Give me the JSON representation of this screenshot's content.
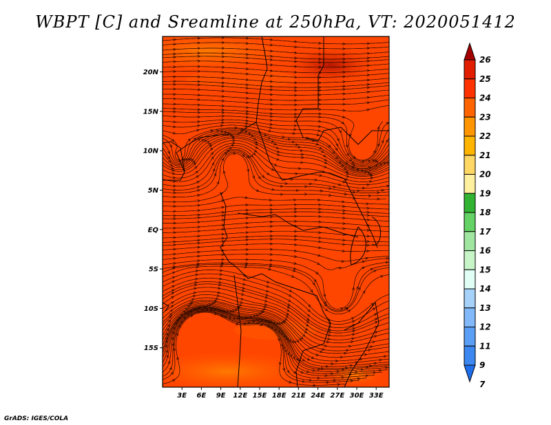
{
  "title": "WBPT [C] and Sreamline at 250hPa, VT: 2020051412",
  "credit": "GrADS: IGES/COLA",
  "map": {
    "lat_labels": [
      "20N",
      "15N",
      "10N",
      "5N",
      "EQ",
      "5S",
      "10S",
      "15S"
    ],
    "lat_values": [
      20,
      15,
      10,
      5,
      0,
      -5,
      -10,
      -15
    ],
    "lon_labels": [
      "3E",
      "6E",
      "9E",
      "12E",
      "15E",
      "18E",
      "21E",
      "24E",
      "27E",
      "30E",
      "33E"
    ],
    "lon_values": [
      3,
      6,
      9,
      12,
      15,
      18,
      21,
      24,
      27,
      30,
      33
    ],
    "lat_range": [
      -20,
      24.5
    ],
    "lon_range": [
      0,
      35
    ]
  },
  "colorbar": {
    "levels": [
      "7",
      "9",
      "11",
      "12",
      "13",
      "14",
      "15",
      "16",
      "17",
      "18",
      "19",
      "20",
      "21",
      "22",
      "23",
      "24",
      "25",
      "26"
    ],
    "colors": [
      "#1e6eeb",
      "#3c87f0",
      "#5a9ff5",
      "#82b9fa",
      "#a6d2fa",
      "#e1fff5",
      "#c8f5c8",
      "#a0e6a0",
      "#64d264",
      "#32b432",
      "#fff0a0",
      "#ffd764",
      "#ffb400",
      "#ff9600",
      "#ff6400",
      "#ff3200",
      "#e11e00",
      "#a50000"
    ]
  }
}
